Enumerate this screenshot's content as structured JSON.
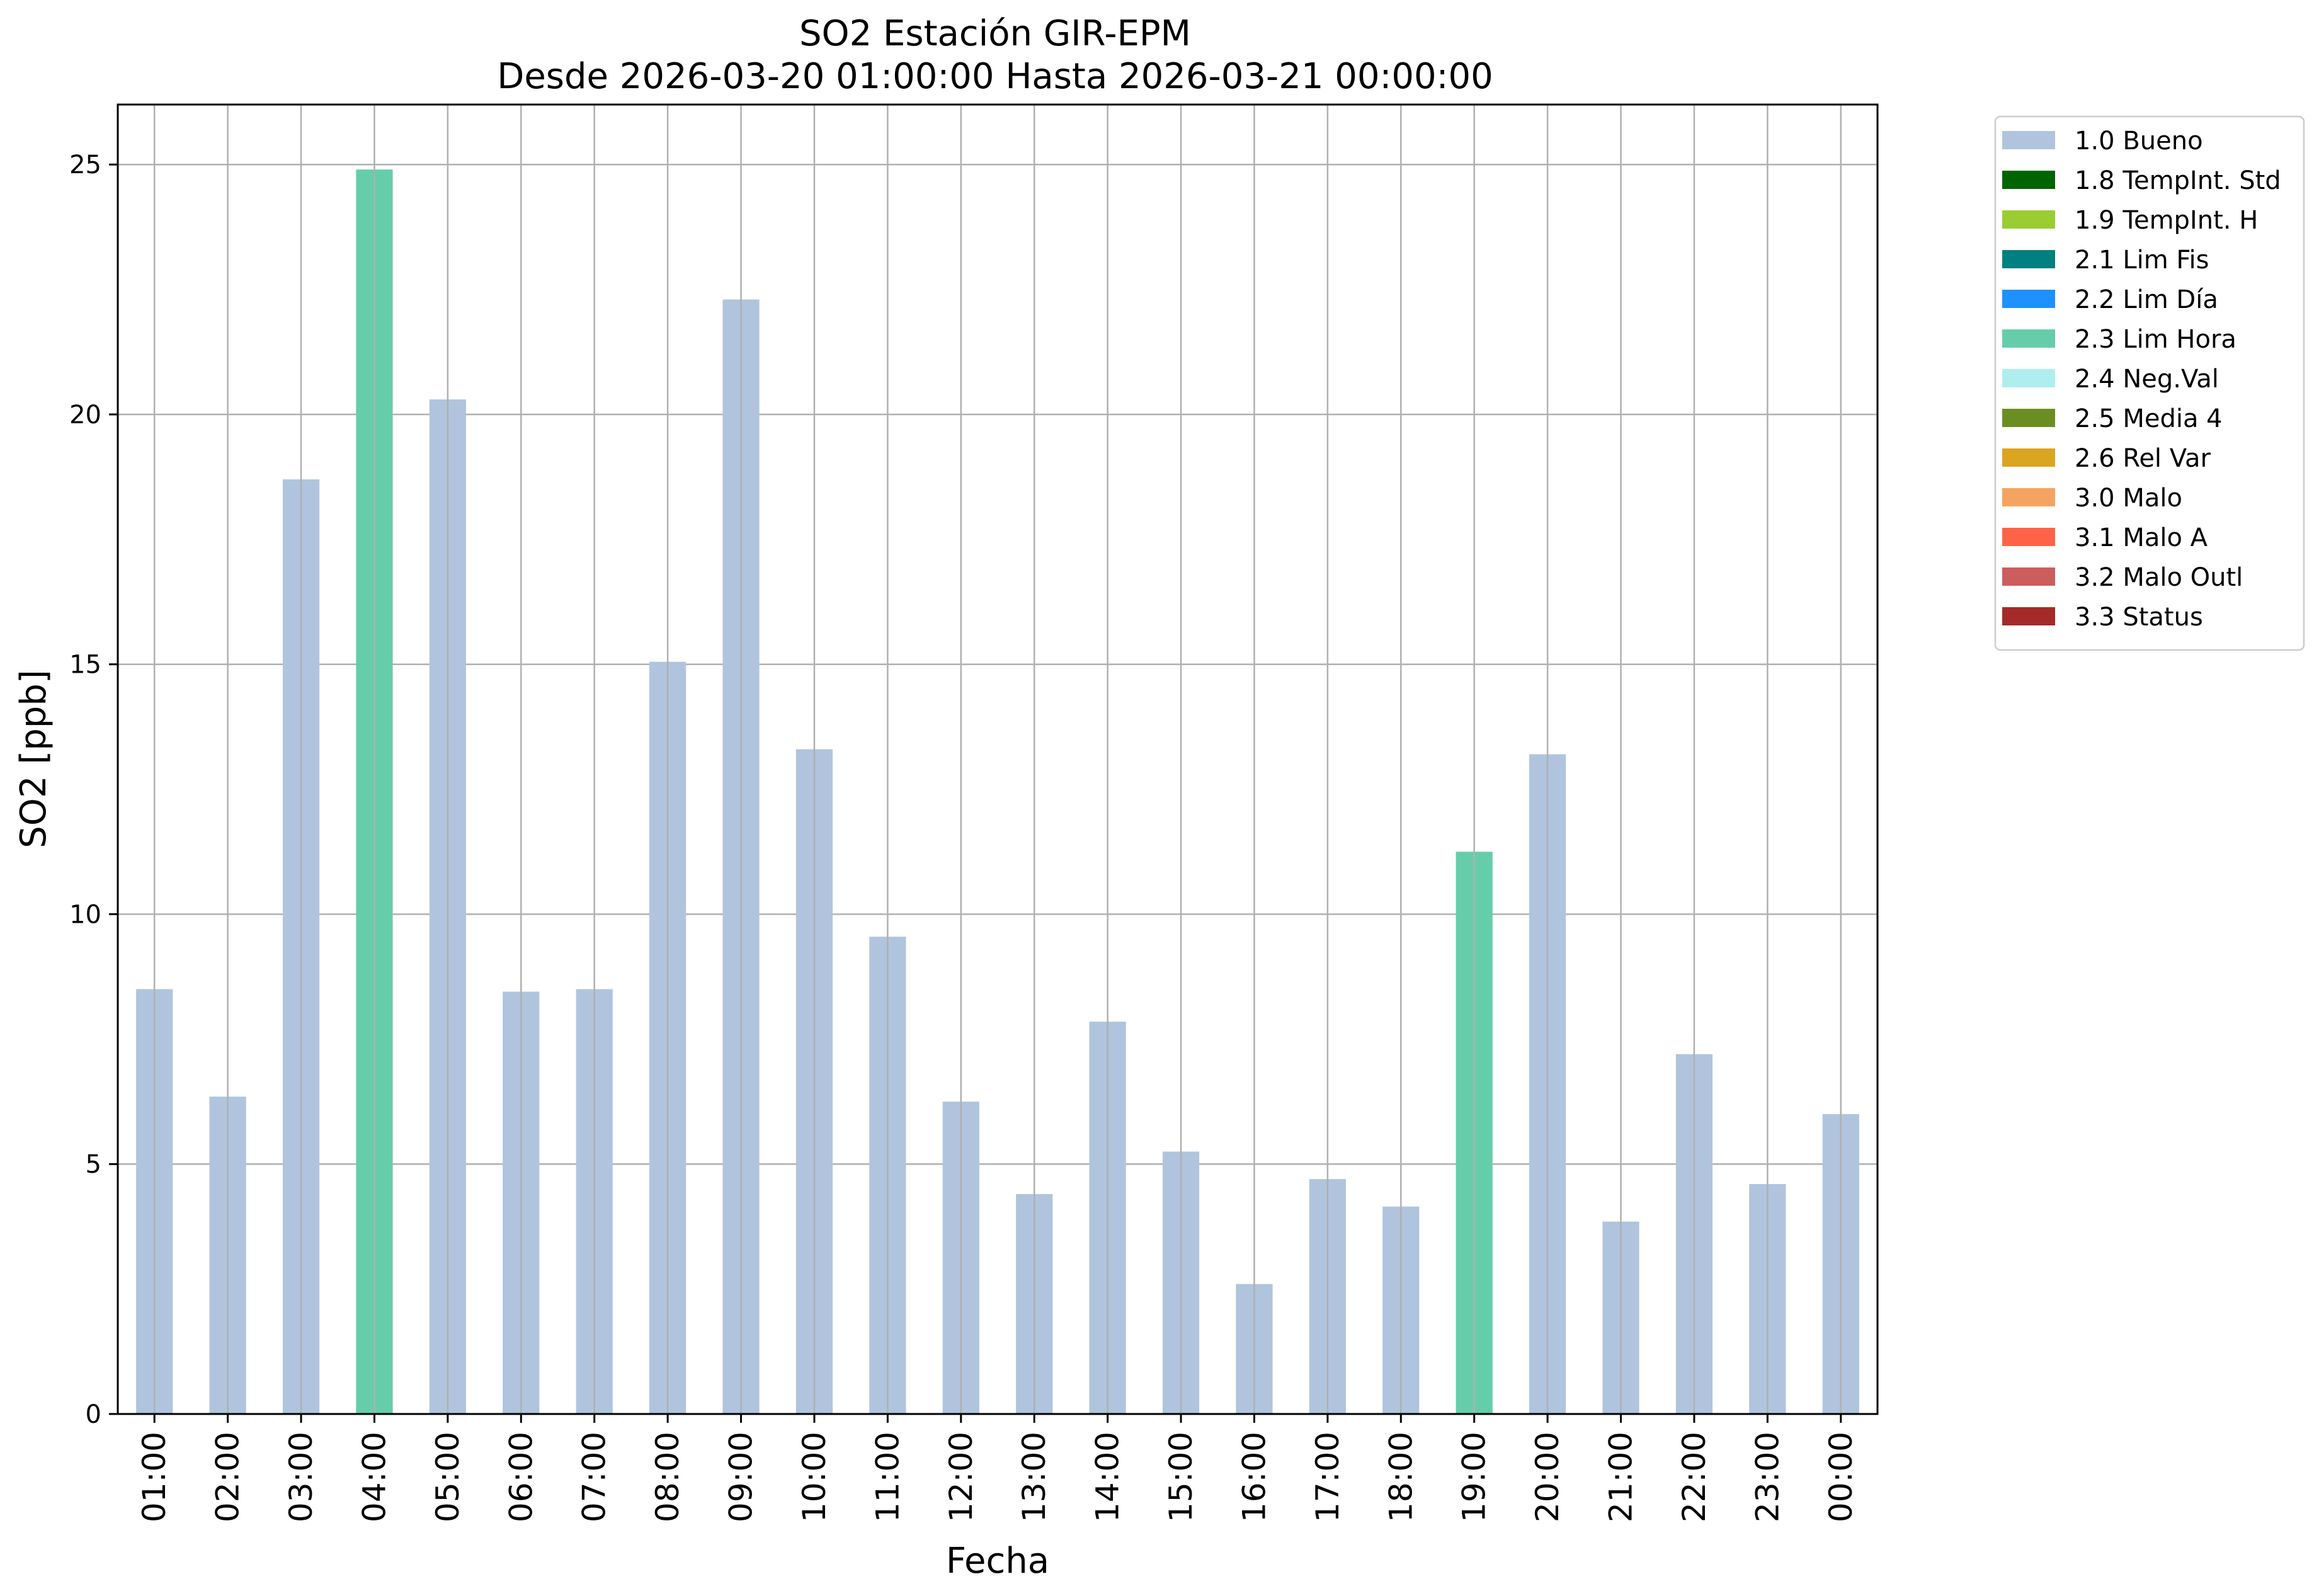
{
  "chart_data": {
    "type": "bar",
    "title": "SO2 Estación GIR-EPM",
    "subtitle": "Desde 2026-03-20 01:00:00 Hasta 2026-03-21 00:00:00",
    "xlabel": "Fecha",
    "ylabel": "SO2 [ppb]",
    "ylim": [
      0,
      26.2
    ],
    "yticks": [
      0,
      5,
      10,
      15,
      20,
      25
    ],
    "grid": true,
    "legend_position": "outside-top-right",
    "categories": [
      "01:00",
      "02:00",
      "03:00",
      "04:00",
      "05:00",
      "06:00",
      "07:00",
      "08:00",
      "09:00",
      "10:00",
      "11:00",
      "12:00",
      "13:00",
      "14:00",
      "15:00",
      "16:00",
      "17:00",
      "18:00",
      "19:00",
      "20:00",
      "21:00",
      "22:00",
      "23:00",
      "00:00"
    ],
    "values": [
      8.5,
      6.35,
      18.7,
      24.9,
      20.3,
      8.45,
      8.5,
      15.05,
      22.3,
      13.3,
      9.55,
      6.25,
      4.4,
      7.85,
      5.25,
      2.6,
      4.7,
      4.15,
      11.25,
      13.2,
      3.85,
      7.2,
      4.6,
      6.0
    ],
    "flags": [
      "1.0 Bueno",
      "1.0 Bueno",
      "1.0 Bueno",
      "2.3 Lim Hora",
      "1.0 Bueno",
      "1.0 Bueno",
      "1.0 Bueno",
      "1.0 Bueno",
      "1.0 Bueno",
      "1.0 Bueno",
      "1.0 Bueno",
      "1.0 Bueno",
      "1.0 Bueno",
      "1.0 Bueno",
      "1.0 Bueno",
      "1.0 Bueno",
      "1.0 Bueno",
      "1.0 Bueno",
      "2.3 Lim Hora",
      "1.0 Bueno",
      "1.0 Bueno",
      "1.0 Bueno",
      "1.0 Bueno",
      "1.0 Bueno"
    ],
    "legend": [
      {
        "label": "1.0 Bueno",
        "color": "#B0C4DE"
      },
      {
        "label": "1.8 TempInt. Std",
        "color": "#006400"
      },
      {
        "label": "1.9 TempInt. H",
        "color": "#9ACD32"
      },
      {
        "label": "2.1 Lim Fis",
        "color": "#008080"
      },
      {
        "label": "2.2 Lim Día",
        "color": "#1E90FF"
      },
      {
        "label": "2.3 Lim Hora",
        "color": "#66CDAA"
      },
      {
        "label": "2.4 Neg.Val",
        "color": "#AFEEEE"
      },
      {
        "label": "2.5 Media 4",
        "color": "#6B8E23"
      },
      {
        "label": "2.6 Rel Var",
        "color": "#DAA520"
      },
      {
        "label": "3.0 Malo",
        "color": "#F4A460"
      },
      {
        "label": "3.1 Malo A",
        "color": "#FF6347"
      },
      {
        "label": "3.2 Malo Outl",
        "color": "#CD5C5C"
      },
      {
        "label": "3.3 Status",
        "color": "#A52A2A"
      }
    ]
  }
}
